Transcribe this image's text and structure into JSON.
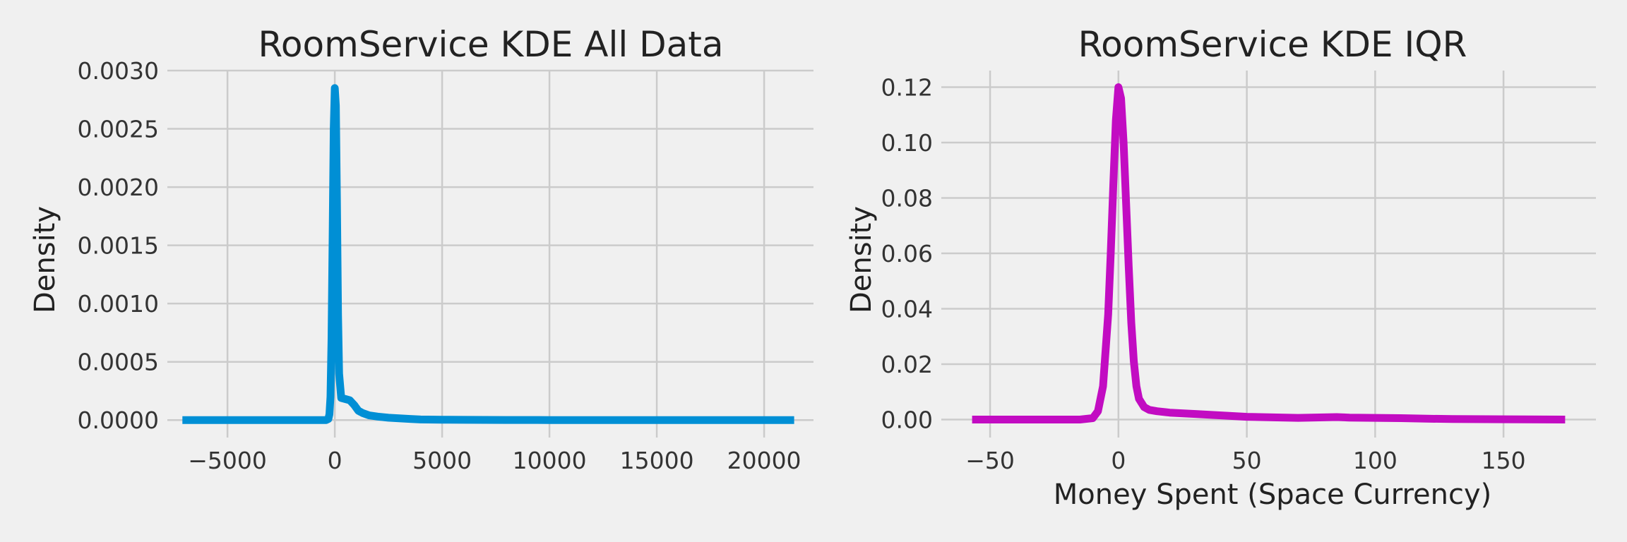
{
  "chart_data": [
    {
      "type": "line",
      "title": "RoomService KDE All Data",
      "xlabel": "",
      "ylabel": "Density",
      "xlim": [
        -7800,
        22300
      ],
      "ylim": [
        -0.00015,
        0.003
      ],
      "xticks": [
        -5000,
        0,
        5000,
        10000,
        15000,
        20000
      ],
      "xtick_labels": [
        "−5000",
        "0",
        "5000",
        "10000",
        "15000",
        "20000"
      ],
      "yticks": [
        0,
        0.0005,
        0.001,
        0.0015,
        0.002,
        0.0025,
        0.003
      ],
      "ytick_labels": [
        "0.0000",
        "0.0005",
        "0.0010",
        "0.0015",
        "0.0020",
        "0.0025",
        "0.0030"
      ],
      "grid": true,
      "line_color": "#008fd5",
      "series": [
        {
          "x": [
            -7100,
            -2000,
            -600,
            -400,
            -300,
            -250,
            -200,
            -150,
            -100,
            -50,
            0,
            50,
            100,
            150,
            200,
            300,
            500,
            700,
            900,
            1100,
            1300,
            1600,
            2000,
            2500,
            3000,
            3500,
            4000,
            5000,
            6000,
            8000,
            10000,
            15000,
            21400
          ],
          "y": [
            0,
            0,
            0,
            0,
            1e-05,
            5e-05,
            0.0002,
            0.0007,
            0.0016,
            0.0025,
            0.00285,
            0.0027,
            0.0019,
            0.0009,
            0.0004,
            0.00019,
            0.00018,
            0.00017,
            0.00013,
            8e-05,
            6e-05,
            4e-05,
            3e-05,
            2e-05,
            1.5e-05,
            1e-05,
            5e-06,
            3e-06,
            2e-06,
            1e-06,
            0,
            0,
            0
          ]
        }
      ]
    },
    {
      "type": "line",
      "title": "RoomService KDE IQR",
      "xlabel": "Money Spent (Space Currency)",
      "ylabel": "Density",
      "xlim": [
        -69,
        186
      ],
      "ylim": [
        -0.0065,
        0.126
      ],
      "xticks": [
        -50,
        0,
        50,
        100,
        150
      ],
      "xtick_labels": [
        "−50",
        "0",
        "50",
        "100",
        "150"
      ],
      "yticks": [
        0,
        0.02,
        0.04,
        0.06,
        0.08,
        0.1,
        0.12
      ],
      "ytick_labels": [
        "0.00",
        "0.02",
        "0.04",
        "0.06",
        "0.08",
        "0.10",
        "0.12"
      ],
      "grid": true,
      "line_color": "#c20cc2",
      "series": [
        {
          "x": [
            -57,
            -15,
            -10,
            -8,
            -6,
            -4,
            -3,
            -2,
            -1,
            0,
            1,
            2,
            3,
            4,
            5,
            6,
            7,
            8,
            10,
            12,
            15,
            20,
            30,
            40,
            50,
            60,
            70,
            80,
            85,
            90,
            100,
            110,
            120,
            130,
            150,
            174
          ],
          "y": [
            0,
            0,
            0.0005,
            0.003,
            0.012,
            0.038,
            0.06,
            0.085,
            0.108,
            0.12,
            0.116,
            0.1,
            0.078,
            0.055,
            0.035,
            0.021,
            0.012,
            0.0075,
            0.0045,
            0.0035,
            0.003,
            0.0025,
            0.002,
            0.0015,
            0.001,
            0.0008,
            0.0006,
            0.0008,
            0.0009,
            0.0007,
            0.0006,
            0.0005,
            0.0003,
            0.0002,
            0.0001,
            0
          ]
        }
      ]
    }
  ]
}
